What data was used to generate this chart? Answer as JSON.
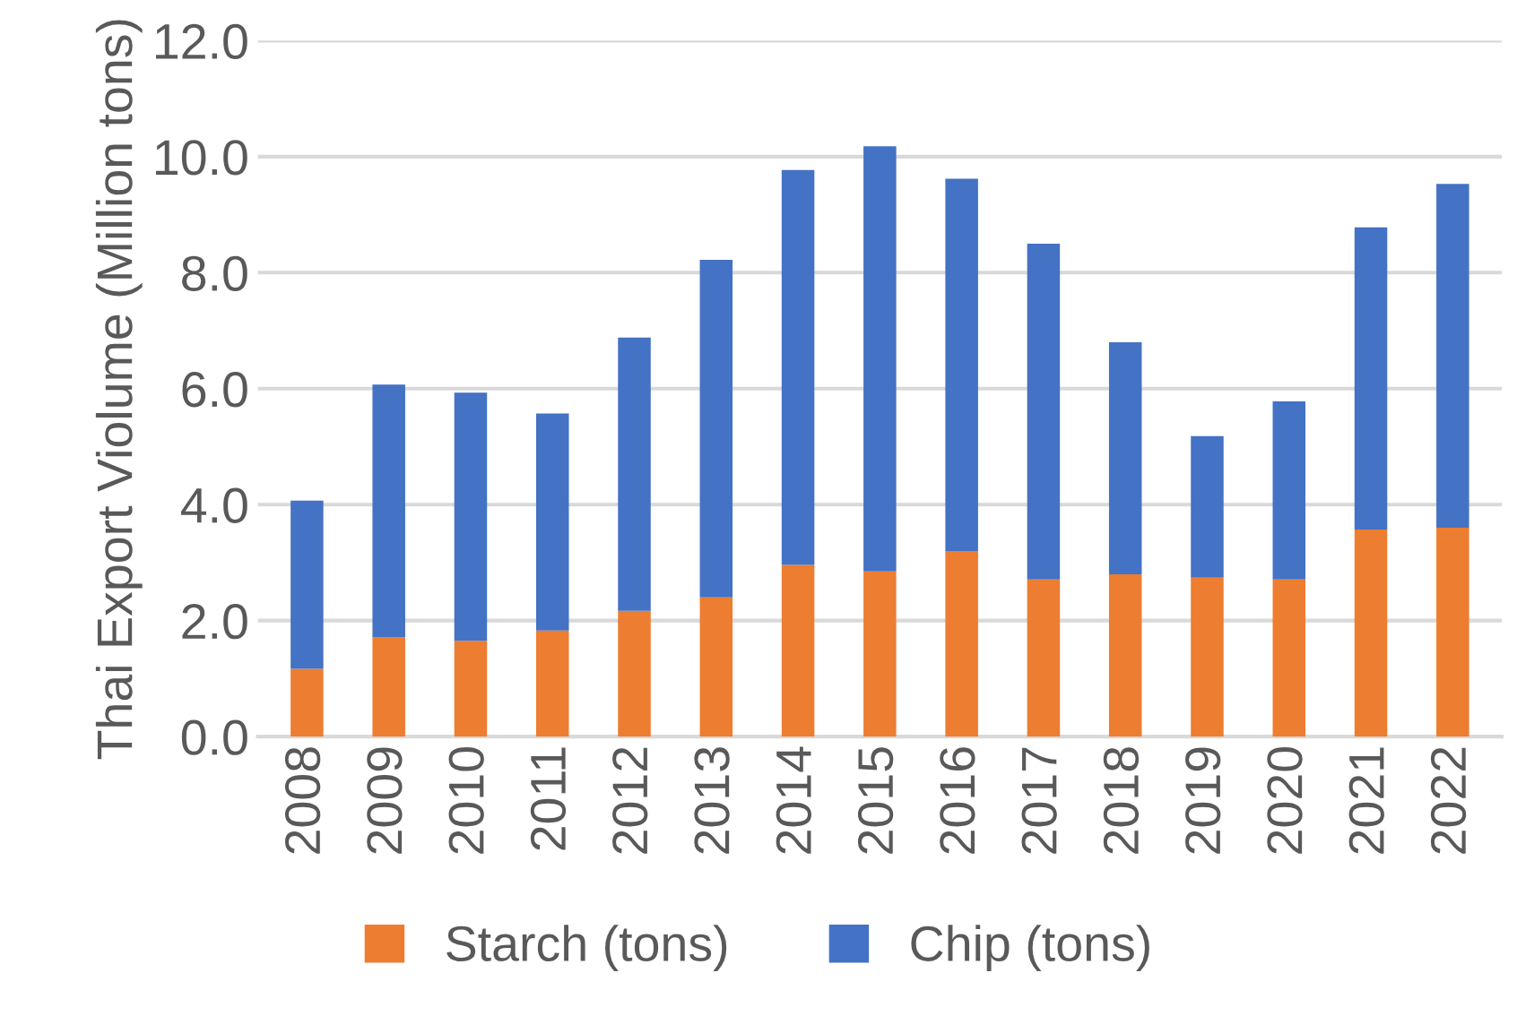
{
  "chart_data": {
    "type": "bar",
    "stacked": true,
    "ylabel": "Thai Export Violume (Million tons)",
    "categories": [
      "2008",
      "2009",
      "2010",
      "2011",
      "2012",
      "2013",
      "2014",
      "2015",
      "2016",
      "2017",
      "2018",
      "2019",
      "2020",
      "2021",
      "2022"
    ],
    "series": [
      {
        "name": "Starch (tons)",
        "color": "#ed7d31",
        "values": [
          1.17,
          1.71,
          1.65,
          1.83,
          2.17,
          2.4,
          2.96,
          2.85,
          3.2,
          2.71,
          2.8,
          2.74,
          2.71,
          3.57,
          3.6
        ]
      },
      {
        "name": "Chip (tons)",
        "color": "#4472c4",
        "values": [
          2.9,
          4.36,
          4.28,
          3.74,
          4.71,
          5.82,
          6.81,
          7.33,
          6.42,
          5.79,
          4.0,
          2.44,
          3.07,
          5.21,
          5.93
        ]
      }
    ],
    "ylim": [
      0,
      12
    ],
    "yticks": [
      {
        "value": 0,
        "label": "0.0"
      },
      {
        "value": 2,
        "label": "2.0"
      },
      {
        "value": 4,
        "label": "4.0"
      },
      {
        "value": 6,
        "label": "6.0"
      },
      {
        "value": 8,
        "label": "8.0"
      },
      {
        "value": 10,
        "label": "10.0"
      },
      {
        "value": 12,
        "label": "12.0"
      }
    ],
    "grid": "y",
    "legend": "bottom"
  }
}
